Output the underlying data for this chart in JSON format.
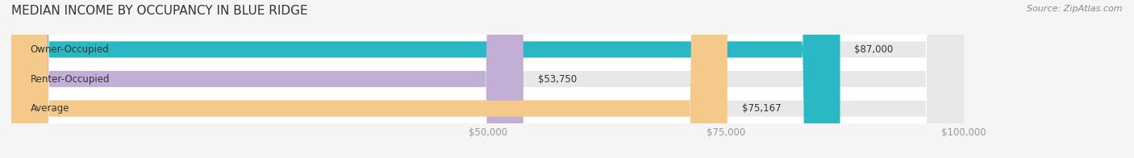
{
  "title": "MEDIAN INCOME BY OCCUPANCY IN BLUE RIDGE",
  "source": "Source: ZipAtlas.com",
  "categories": [
    "Owner-Occupied",
    "Renter-Occupied",
    "Average"
  ],
  "values": [
    87000,
    53750,
    75167
  ],
  "bar_colors": [
    "#2ab8c5",
    "#c3aed6",
    "#f5c98a"
  ],
  "bar_bg_color": "#e8e8e8",
  "value_labels": [
    "$87,000",
    "$53,750",
    "$75,167"
  ],
  "xlim": [
    0,
    100000
  ],
  "xticks": [
    50000,
    75000,
    100000
  ],
  "xticklabels": [
    "$50,000",
    "$75,000",
    "$100,000"
  ],
  "title_fontsize": 11,
  "label_fontsize": 8.5,
  "value_fontsize": 8.5,
  "source_fontsize": 8,
  "bar_height": 0.55,
  "bg_color": "#f5f5f5",
  "plot_bg_color": "#ffffff",
  "title_color": "#333333",
  "label_color": "#333333",
  "value_color": "#333333",
  "tick_color": "#999999"
}
